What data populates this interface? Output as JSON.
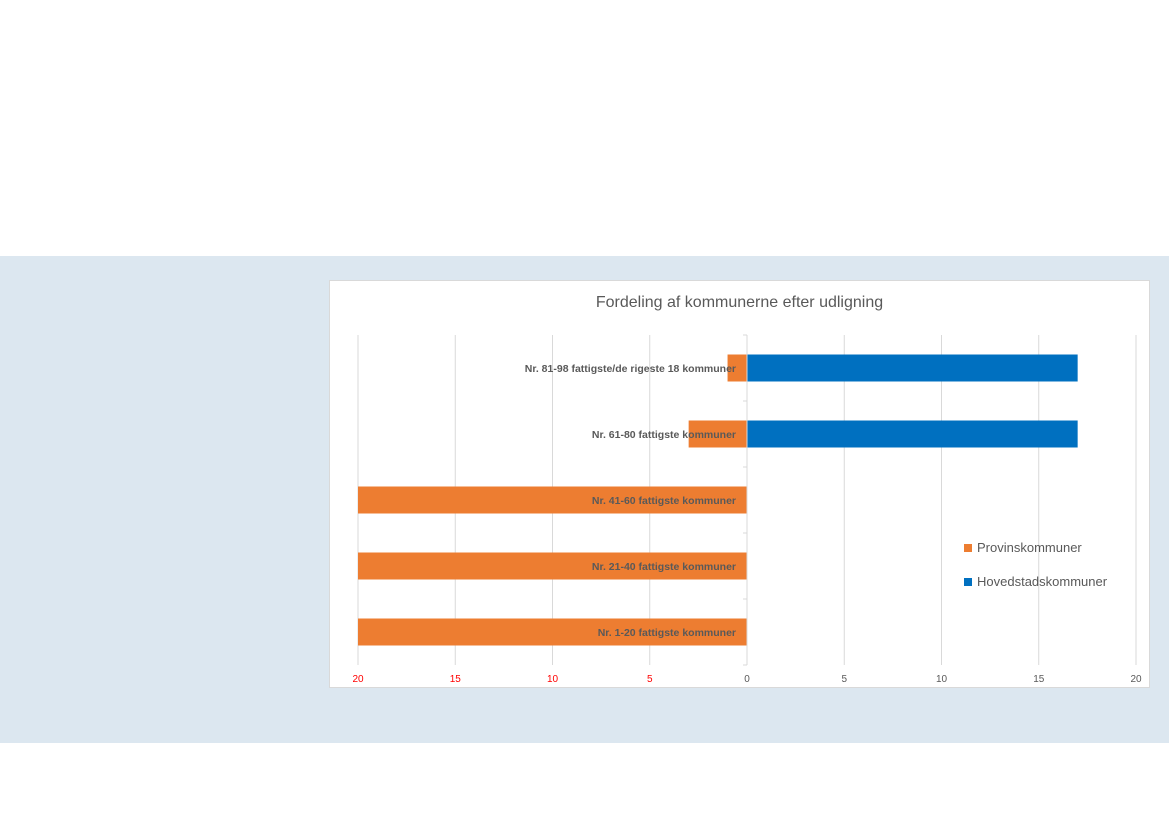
{
  "chart_data": {
    "type": "bar",
    "orientation": "horizontal-diverging",
    "title": "Fordeling af kommunerne efter udligning",
    "categories": [
      "Nr. 81-98 fattigste/de rigeste 18 kommuner",
      "Nr. 61-80 fattigste kommuner",
      "Nr. 41-60 fattigste kommuner",
      "Nr. 21-40 fattigste kommuner",
      "Nr. 1-20 fattigste kommuner"
    ],
    "series": [
      {
        "name": "Provinskommuner",
        "values": [
          1,
          3,
          20,
          20,
          20
        ],
        "color": "#ed7d31",
        "side": "left"
      },
      {
        "name": "Hovedstadskommuner",
        "values": [
          17,
          17,
          0,
          0,
          0
        ],
        "color": "#0070c0",
        "side": "right"
      }
    ],
    "xlim": [
      -20,
      20
    ],
    "ticks": [
      -20,
      -15,
      -10,
      -5,
      0,
      5,
      10,
      15,
      20
    ],
    "tick_labels": [
      "20",
      "15",
      "10",
      "5",
      "0",
      "5",
      "10",
      "15",
      "20"
    ],
    "negative_tick_color": "#ff0000",
    "positive_tick_color": "#595959",
    "grid": true,
    "legend_position": "right"
  }
}
